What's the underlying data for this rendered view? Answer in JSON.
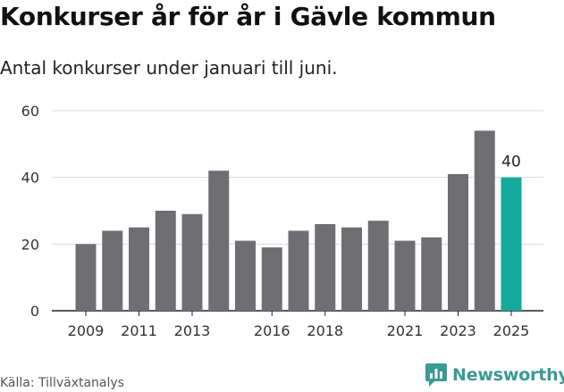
{
  "title": "Konkurser år för år i Gävle kommun",
  "subtitle": "Antal konkurser under januari till juni.",
  "source": "Källa: Tillväxtanalys",
  "brand": {
    "name": "Newsworthy",
    "icon": "newsworthy-logo-icon",
    "color": "#3a9a94"
  },
  "chart_data": {
    "type": "bar",
    "categories": [
      "2009",
      "2010",
      "2011",
      "2012",
      "2013",
      "2014",
      "2015",
      "2016",
      "2017",
      "2018",
      "2019",
      "2020",
      "2021",
      "2022",
      "2023",
      "2024",
      "2025"
    ],
    "values": [
      20,
      24,
      25,
      30,
      29,
      42,
      21,
      19,
      24,
      26,
      25,
      27,
      21,
      22,
      41,
      54,
      40
    ],
    "x_tick_labels": [
      "2009",
      "2011",
      "2013",
      "2016",
      "2018",
      "2021",
      "2023",
      "2025"
    ],
    "y_ticks": [
      0,
      20,
      40,
      60
    ],
    "ylim": [
      0,
      60
    ],
    "grid": true,
    "highlight": {
      "category": "2025",
      "label": "40",
      "color": "#14a99a"
    },
    "bar_color": "#6f6e72"
  }
}
